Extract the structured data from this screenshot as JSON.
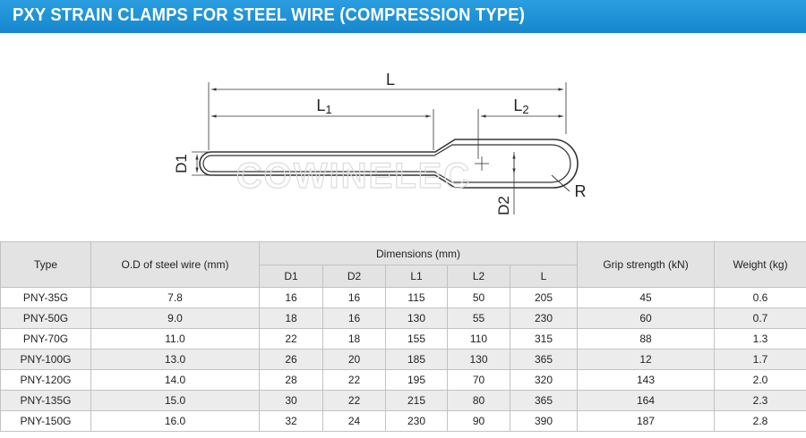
{
  "header": {
    "title": "PXY STRAIN CLAMPS FOR STEEL WIRE (COMPRESSION TYPE)"
  },
  "drawing": {
    "labels": {
      "L": "L",
      "L1": "L1",
      "L2": "L2",
      "D1": "D1",
      "D2": "D2",
      "R": "R"
    },
    "watermark": "COWINELEC"
  },
  "table": {
    "headers": {
      "type": "Type",
      "od": "O.D of steel wire (mm)",
      "dimensions": "Dimensions (mm)",
      "d1": "D1",
      "d2": "D2",
      "l1": "L1",
      "l2": "L2",
      "l": "L",
      "grip": "Grip strength (kN)",
      "weight": "Weight (kg)"
    },
    "rows": [
      {
        "type": "PNY-35G",
        "od": "7.8",
        "d1": "16",
        "d2": "16",
        "l1": "115",
        "l2": "50",
        "l": "205",
        "grip": "45",
        "weight": "0.6"
      },
      {
        "type": "PNY-50G",
        "od": "9.0",
        "d1": "18",
        "d2": "16",
        "l1": "130",
        "l2": "55",
        "l": "230",
        "grip": "60",
        "weight": "0.7"
      },
      {
        "type": "PNY-70G",
        "od": "11.0",
        "d1": "22",
        "d2": "18",
        "l1": "155",
        "l2": "110",
        "l": "315",
        "grip": "88",
        "weight": "1.3"
      },
      {
        "type": "PNY-100G",
        "od": "13.0",
        "d1": "26",
        "d2": "20",
        "l1": "185",
        "l2": "130",
        "l": "365",
        "grip": "12",
        "weight": "1.7"
      },
      {
        "type": "PNY-120G",
        "od": "14.0",
        "d1": "28",
        "d2": "22",
        "l1": "195",
        "l2": "70",
        "l": "320",
        "grip": "143",
        "weight": "2.0"
      },
      {
        "type": "PNY-135G",
        "od": "15.0",
        "d1": "30",
        "d2": "22",
        "l1": "215",
        "l2": "80",
        "l": "365",
        "grip": "164",
        "weight": "2.3"
      },
      {
        "type": "PNY-150G",
        "od": "16.0",
        "d1": "32",
        "d2": "24",
        "l1": "230",
        "l2": "90",
        "l": "390",
        "grip": "187",
        "weight": "2.8"
      }
    ]
  }
}
